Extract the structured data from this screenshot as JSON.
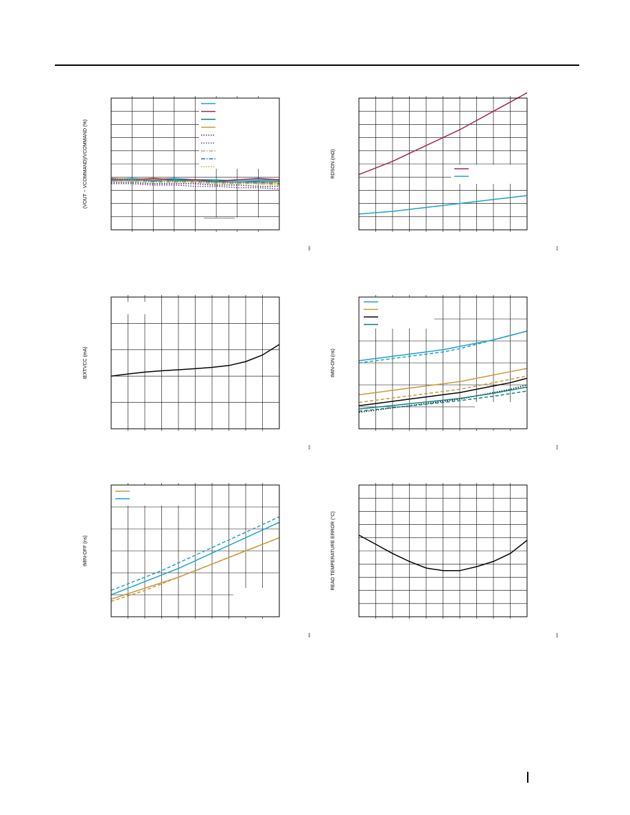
{
  "page": {
    "header_rule": true,
    "footer_marker": true
  },
  "chart_data": [
    {
      "id": "c1",
      "type": "line",
      "ylabel": "(VOUT − VCOMMAND)/VCOMMAND (%)",
      "tag": "000",
      "x": [
        0,
        1,
        2,
        3,
        4,
        5,
        6,
        7,
        8
      ],
      "xlim": [
        0,
        8
      ],
      "ylim": [
        0,
        10
      ],
      "grid": {
        "x": 8,
        "y": 10
      },
      "legend": "top-right",
      "series": [
        {
          "name": "",
          "color": "#1ba1c9",
          "dash": "solid",
          "values": [
            3.8,
            3.9,
            3.8,
            3.9,
            3.8,
            3.8,
            3.7,
            3.8,
            3.8
          ]
        },
        {
          "name": "",
          "color": "#a3214f",
          "dash": "solid",
          "values": [
            3.9,
            3.8,
            3.9,
            3.8,
            3.8,
            3.7,
            3.8,
            3.9,
            3.8
          ]
        },
        {
          "name": "",
          "color": "#0f7f86",
          "dash": "solid",
          "values": [
            3.7,
            3.8,
            3.7,
            3.8,
            3.7,
            3.7,
            3.6,
            3.7,
            3.7
          ]
        },
        {
          "name": "",
          "color": "#c8983a",
          "dash": "solid",
          "values": [
            3.8,
            3.7,
            3.8,
            3.7,
            3.7,
            3.6,
            3.6,
            3.6,
            3.6
          ]
        },
        {
          "name": "",
          "color": "#333333",
          "dash": "dot",
          "values": [
            3.6,
            3.6,
            3.5,
            3.5,
            3.5,
            3.4,
            3.4,
            3.3,
            3.3
          ]
        },
        {
          "name": "",
          "color": "#7a2b8a",
          "dash": "dot",
          "values": [
            3.5,
            3.5,
            3.4,
            3.4,
            3.3,
            3.3,
            3.2,
            3.2,
            3.1
          ]
        },
        {
          "name": "",
          "color": "#a9a9a9",
          "dash": "dashdot",
          "values": [
            3.7,
            3.7,
            3.6,
            3.6,
            3.6,
            3.5,
            3.5,
            3.5,
            3.4
          ]
        },
        {
          "name": "",
          "color": "#1e6fb0",
          "dash": "dashdot",
          "values": [
            3.8,
            3.8,
            3.7,
            3.7,
            3.7,
            3.6,
            3.6,
            3.6,
            3.5
          ]
        },
        {
          "name": "",
          "color": "#d9a02b",
          "dash": "dot",
          "values": [
            3.9,
            3.8,
            3.8,
            3.7,
            3.7,
            3.6,
            3.6,
            3.5,
            3.5
          ]
        }
      ]
    },
    {
      "id": "c2",
      "type": "line",
      "ylabel": "RDSON (mΩ)",
      "tag": "011",
      "x": [
        0,
        1,
        2,
        3,
        4,
        5,
        6,
        7,
        8,
        9,
        10
      ],
      "xlim": [
        0,
        10
      ],
      "ylim": [
        0,
        10
      ],
      "grid": {
        "x": 10,
        "y": 10
      },
      "legend": "middle-right",
      "series": [
        {
          "name": "",
          "color": "#a3214f",
          "dash": "solid",
          "values": [
            4.2,
            4.7,
            5.2,
            5.8,
            6.4,
            7.0,
            7.6,
            8.3,
            9.0,
            9.7,
            10.4
          ]
        },
        {
          "name": "",
          "color": "#1ba1c9",
          "dash": "solid",
          "values": [
            1.2,
            1.3,
            1.4,
            1.55,
            1.7,
            1.85,
            2.0,
            2.15,
            2.3,
            2.45,
            2.6
          ]
        }
      ]
    },
    {
      "id": "c3",
      "type": "line",
      "ylabel": "IEXTVCC (mA)",
      "tag": "011",
      "x": [
        0,
        1,
        2,
        3,
        4,
        5,
        6,
        7,
        8,
        9,
        10
      ],
      "xlim": [
        0,
        10
      ],
      "ylim": [
        0,
        5
      ],
      "grid": {
        "x": 10,
        "y": 5
      },
      "legend": "none",
      "series": [
        {
          "name": "",
          "color": "#000000",
          "dash": "solid",
          "values": [
            2.0,
            2.08,
            2.15,
            2.2,
            2.24,
            2.28,
            2.33,
            2.4,
            2.55,
            2.8,
            3.2
          ]
        }
      ]
    },
    {
      "id": "c4",
      "type": "line",
      "ylabel": "tMIN-ON (ns)",
      "tag": "013",
      "x": [
        0,
        1,
        2,
        3,
        4,
        5,
        6,
        7,
        8,
        9,
        10
      ],
      "xlim": [
        0,
        10
      ],
      "ylim": [
        0,
        6
      ],
      "grid": {
        "x": 10,
        "y": 6
      },
      "legend": "top-left",
      "series": [
        {
          "name": "",
          "color": "#1ba1c9",
          "dash": "solid",
          "values": [
            3.1,
            3.2,
            3.3,
            3.4,
            3.5,
            3.6,
            3.75,
            3.9,
            4.05,
            4.25,
            4.45
          ]
        },
        {
          "name": "",
          "color": "#1ba1c9",
          "dash": "dash",
          "values": [
            3.0,
            3.1,
            3.2,
            3.3,
            3.4,
            3.5,
            3.65,
            3.85,
            4.05,
            4.25,
            4.45
          ]
        },
        {
          "name": "",
          "color": "#c8983a",
          "dash": "solid",
          "values": [
            1.55,
            1.65,
            1.75,
            1.85,
            1.95,
            2.05,
            2.15,
            2.3,
            2.45,
            2.6,
            2.75
          ]
        },
        {
          "name": "",
          "color": "#c8983a",
          "dash": "dash",
          "values": [
            1.2,
            1.3,
            1.4,
            1.5,
            1.6,
            1.7,
            1.8,
            1.95,
            2.1,
            2.25,
            2.4
          ]
        },
        {
          "name": "",
          "color": "#000000",
          "dash": "solid",
          "values": [
            1.05,
            1.15,
            1.25,
            1.35,
            1.45,
            1.55,
            1.65,
            1.8,
            1.95,
            2.1,
            2.3
          ]
        },
        {
          "name": "",
          "color": "#000000",
          "dash": "dot",
          "values": [
            0.75,
            0.85,
            0.95,
            1.05,
            1.15,
            1.25,
            1.35,
            1.5,
            1.65,
            1.8,
            2.0
          ]
        },
        {
          "name": "",
          "color": "#0f7f86",
          "dash": "solid",
          "values": [
            0.9,
            0.98,
            1.06,
            1.14,
            1.22,
            1.3,
            1.38,
            1.5,
            1.62,
            1.76,
            1.9
          ]
        },
        {
          "name": "",
          "color": "#0f7f86",
          "dash": "dash",
          "values": [
            0.8,
            0.88,
            0.96,
            1.04,
            1.12,
            1.2,
            1.28,
            1.38,
            1.48,
            1.6,
            1.72
          ]
        }
      ]
    },
    {
      "id": "c5",
      "type": "line",
      "ylabel": "tMIN-OFF (ns)",
      "tag": "004",
      "x": [
        0,
        1,
        2,
        3,
        4,
        5,
        6,
        7,
        8,
        9,
        10
      ],
      "xlim": [
        0,
        10
      ],
      "ylim": [
        0,
        6
      ],
      "grid": {
        "x": 10,
        "y": 6
      },
      "legend": "top-left",
      "series": [
        {
          "name": "",
          "color": "#c8983a",
          "dash": "solid",
          "values": [
            0.8,
            1.05,
            1.3,
            1.55,
            1.8,
            2.1,
            2.4,
            2.7,
            3.0,
            3.3,
            3.6
          ]
        },
        {
          "name": "",
          "color": "#c8983a",
          "dash": "dash",
          "values": [
            0.7,
            0.95,
            1.2,
            1.5,
            1.8,
            2.1,
            2.4,
            2.7,
            3.0,
            3.3,
            3.6
          ]
        },
        {
          "name": "",
          "color": "#1ba1c9",
          "dash": "solid",
          "values": [
            1.0,
            1.3,
            1.6,
            1.9,
            2.2,
            2.55,
            2.9,
            3.25,
            3.6,
            3.95,
            4.3
          ]
        },
        {
          "name": "",
          "color": "#1ba1c9",
          "dash": "dash",
          "values": [
            1.2,
            1.5,
            1.8,
            2.1,
            2.45,
            2.8,
            3.15,
            3.5,
            3.85,
            4.2,
            4.55
          ]
        }
      ]
    },
    {
      "id": "c6",
      "type": "line",
      "ylabel": "READ TEMPERATURE ERROR (°C)",
      "tag": "016",
      "x": [
        0,
        1,
        2,
        3,
        4,
        5,
        6,
        7,
        8,
        9,
        10
      ],
      "xlim": [
        0,
        10
      ],
      "ylim": [
        0,
        10
      ],
      "grid": {
        "x": 10,
        "y": 10
      },
      "legend": "none",
      "series": [
        {
          "name": "",
          "color": "#000000",
          "dash": "solid",
          "values": [
            6.2,
            5.5,
            4.8,
            4.2,
            3.7,
            3.5,
            3.5,
            3.8,
            4.2,
            4.8,
            5.8
          ]
        }
      ]
    }
  ]
}
